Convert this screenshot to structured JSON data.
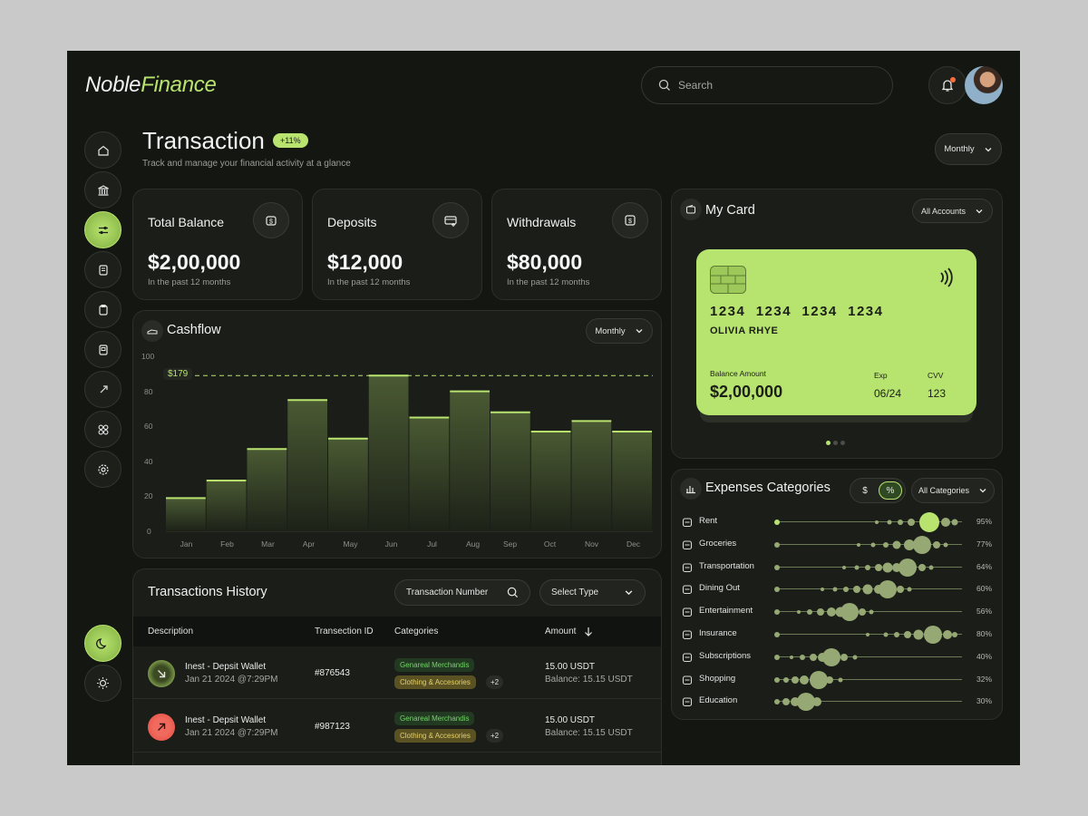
{
  "brand": {
    "name_part1": "Noble",
    "name_part2": "Finance"
  },
  "search": {
    "placeholder": "Search"
  },
  "page": {
    "title": "Transaction",
    "badge": "+11%",
    "subtitle": "Track and manage your financial activity at a glance",
    "period": "Monthly"
  },
  "stats": [
    {
      "title": "Total Balance",
      "value": "$2,00,000",
      "sub": "In the past 12 months"
    },
    {
      "title": "Deposits",
      "value": "$12,000",
      "sub": "In the past 12 months"
    },
    {
      "title": "Withdrawals",
      "value": "$80,000",
      "sub": "In the past 12 months"
    }
  ],
  "cashflow": {
    "title": "Cashflow",
    "period": "Monthly",
    "highlight_label": "$179"
  },
  "chart_data": {
    "type": "bar",
    "categories": [
      "Jan",
      "Feb",
      "Mar",
      "Apr",
      "May",
      "Jun",
      "Jul",
      "Aug",
      "Sep",
      "Oct",
      "Nov",
      "Dec"
    ],
    "values": [
      19,
      29,
      47,
      75,
      53,
      89,
      65,
      80,
      68,
      57,
      63,
      57
    ],
    "yticks": [
      "100",
      "80",
      "60",
      "40",
      "20",
      "0"
    ],
    "ylim": [
      0,
      100
    ],
    "reference_line": 89,
    "colors": {
      "bar_top": "#b8e36f",
      "bar": "#3e4a2d"
    }
  },
  "card": {
    "title": "My Card",
    "account_filter": "All Accounts",
    "number": "1234  1234  1234  1234",
    "holder": "OLIVIA RHYE",
    "balance_label": "Balance Amount",
    "balance": "$2,00,000",
    "exp_label": "Exp",
    "exp": "06/24",
    "cvv_label": "CVV",
    "cvv": "123"
  },
  "history": {
    "title": "Transactions History",
    "search_label": "Transaction Number",
    "type_label": "Select Type",
    "columns": [
      "Description",
      "Transection ID",
      "Categories",
      "Amount"
    ],
    "rows": [
      {
        "name": "Inest - Depsit Wallet",
        "date": "Jan 21 2024 @7:29PM",
        "id": "#876543",
        "tag1": "Genareal Merchandis",
        "tag2": "Clothing & Accesories",
        "more": "+2",
        "amount": "15.00 USDT",
        "balance": "Balance: 15.15 USDT",
        "direction": "in"
      },
      {
        "name": "Inest - Depsit Wallet",
        "date": "Jan 21 2024 @7:29PM",
        "id": "#987123",
        "tag1": "Genareal Merchandis",
        "tag2": "Clothing & Accesories",
        "more": "+2",
        "amount": "15.00 USDT",
        "balance": "Balance: 15.15 USDT",
        "direction": "out"
      }
    ]
  },
  "expenses": {
    "title": "Expenses Categories",
    "toggle": [
      "$",
      "%"
    ],
    "filter": "All Categories",
    "items": [
      {
        "label": "Rent",
        "pct": "95%",
        "icon": "home-icon"
      },
      {
        "label": "Groceries",
        "pct": "77%",
        "icon": "basket-icon"
      },
      {
        "label": "Transportation",
        "pct": "64%",
        "icon": "bus-icon"
      },
      {
        "label": "Dining Out",
        "pct": "60%",
        "icon": "dining-icon"
      },
      {
        "label": "Entertainment",
        "pct": "56%",
        "icon": "film-icon"
      },
      {
        "label": "Insurance",
        "pct": "80%",
        "icon": "shield-icon"
      },
      {
        "label": "Subscriptions",
        "pct": "40%",
        "icon": "subscription-icon"
      },
      {
        "label": "Shopping",
        "pct": "32%",
        "icon": "bag-icon"
      },
      {
        "label": "Education",
        "pct": "30%",
        "icon": "book-icon"
      }
    ]
  },
  "colors": {
    "accent": "#b8e36f",
    "background": "#141612",
    "panel": "#1a1d18",
    "danger": "#f06b5e"
  }
}
